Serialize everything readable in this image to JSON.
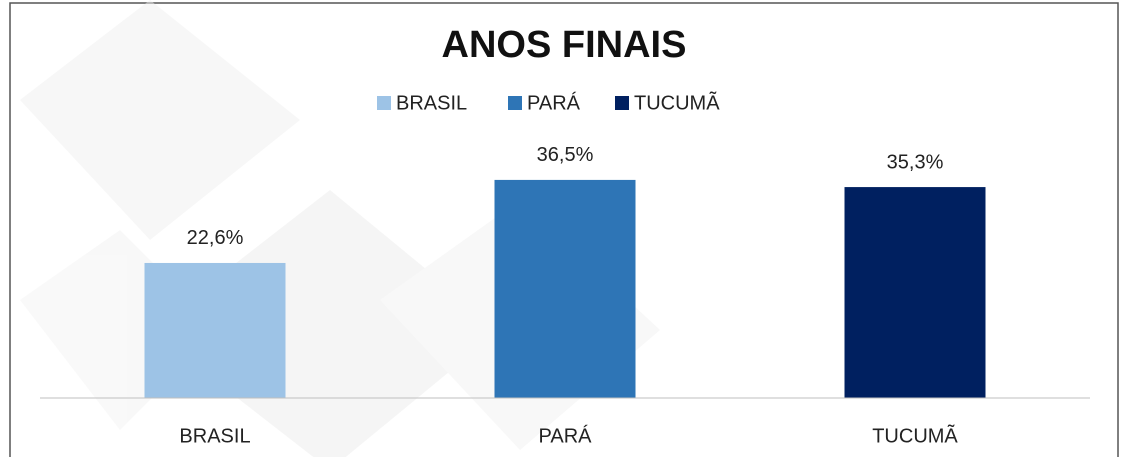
{
  "chart_data": {
    "type": "bar",
    "title": "ANOS FINAIS",
    "categories": [
      "BRASIL",
      "PARÁ",
      "TUCUMÃ"
    ],
    "values": [
      22.6,
      36.5,
      35.3
    ],
    "value_labels": [
      "22,6%",
      "36,5%",
      "35,3%"
    ],
    "colors": [
      "#9dc3e6",
      "#2e75b6",
      "#002060"
    ],
    "ylim": [
      0,
      40
    ],
    "legend": "top",
    "grid": false
  }
}
